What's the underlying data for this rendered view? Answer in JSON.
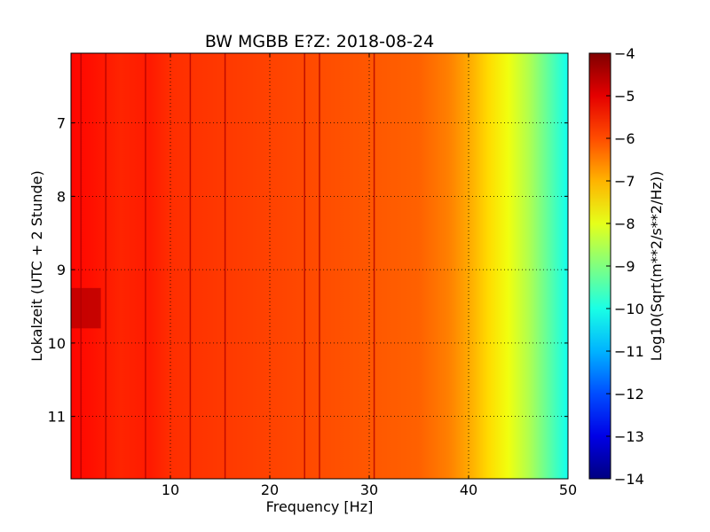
{
  "chart_data": {
    "type": "heatmap",
    "title": "BW MGBB E?Z: 2018-08-24",
    "xlabel": "Frequency [Hz]",
    "ylabel": "Lokalzeit (UTC + 2 Stunde)",
    "colorbar_label": "Log10(Sqrt(m**2/s**2/Hz))",
    "xlim": [
      0,
      50
    ],
    "ylim": [
      11.85,
      6.05
    ],
    "y_inverted": true,
    "x_ticks": [
      10,
      20,
      30,
      40,
      50
    ],
    "y_ticks": [
      7,
      8,
      9,
      10,
      11
    ],
    "colorbar_range": [
      -14,
      -4
    ],
    "colorbar_ticks": [
      -4,
      -5,
      -6,
      -7,
      -8,
      -9,
      -10,
      -11,
      -12,
      -13,
      -14
    ],
    "colormap": "jet",
    "grid": true,
    "spectrum_profile": {
      "frequency_hz": [
        0,
        2,
        5,
        8,
        10,
        15,
        20,
        25,
        30,
        35,
        38,
        40,
        42,
        44,
        46,
        48,
        50
      ],
      "log10_amplitude": [
        -5.3,
        -5.4,
        -5.6,
        -5.5,
        -5.7,
        -5.8,
        -5.9,
        -6.0,
        -6.1,
        -6.2,
        -6.5,
        -6.9,
        -7.4,
        -7.9,
        -8.5,
        -9.3,
        -10.1
      ]
    },
    "vertical_lines_hz": [
      1,
      3.5,
      7.5,
      12,
      15.5,
      23.5,
      25,
      30.5
    ],
    "dark_patch": {
      "frequency_hz": [
        0,
        3
      ],
      "time": [
        9.25,
        9.8
      ],
      "log10_amplitude": -4.6
    },
    "colors": {
      "frame": "#000000",
      "grid": "#000000"
    }
  }
}
